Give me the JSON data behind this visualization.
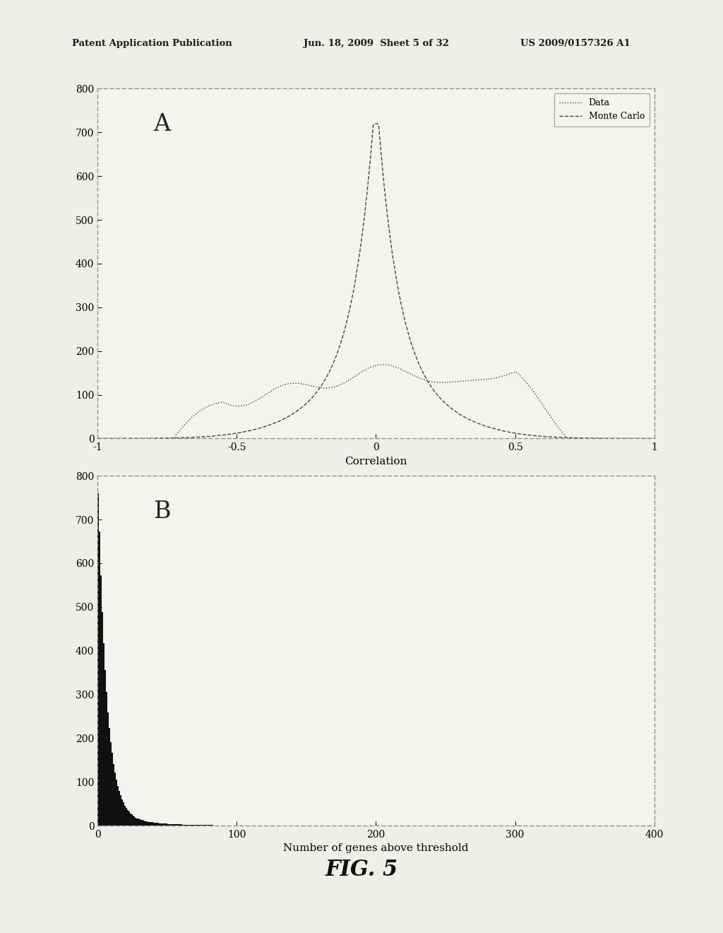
{
  "fig_width": 10.24,
  "fig_height": 13.2,
  "dpi": 100,
  "bg_color": "#f0eeeb",
  "header_text_left": "Patent Application Publication",
  "header_text_mid": "Jun. 18, 2009  Sheet 5 of 32",
  "header_text_right": "US 2009/0157326 A1",
  "footer_text": "FIG. 5",
  "plot_A": {
    "label": "A",
    "xlabel": "Correlation",
    "xlim": [
      -1,
      1
    ],
    "ylim": [
      0,
      800
    ],
    "yticks": [
      0,
      100,
      200,
      300,
      400,
      500,
      600,
      700,
      800
    ],
    "xticks": [
      -1,
      -0.5,
      0,
      0.5,
      1
    ],
    "legend_labels": [
      "Data",
      "Monte Carlo"
    ]
  },
  "plot_B": {
    "label": "B",
    "xlabel": "Number of genes above threshold",
    "xlim": [
      0,
      400
    ],
    "ylim": [
      0,
      800
    ],
    "yticks": [
      0,
      100,
      200,
      300,
      400,
      500,
      600,
      700,
      800
    ],
    "xticks": [
      0,
      100,
      200,
      300,
      400
    ],
    "bar_color": "#111111"
  }
}
